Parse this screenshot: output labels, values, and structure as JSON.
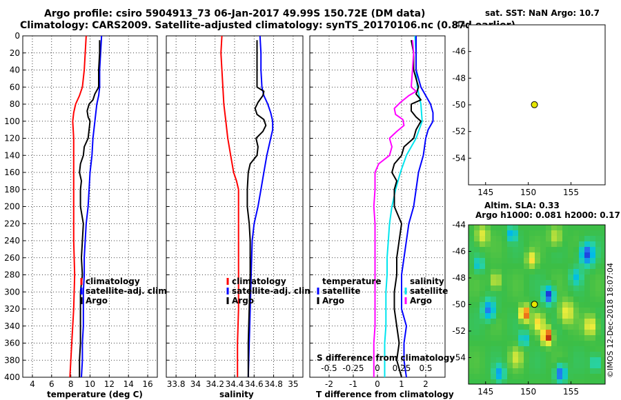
{
  "title_line1": "Argo profile: csiro 5904913_73 06-Jan-2017 49.99S 150.72E (DM data)",
  "title_line2": "Climatology: CARS2009. Satellite-adjusted climatology: synTS_20170106.nc (0.87d earlier)",
  "stamp": "©IMOS 12-Dec-2018 18:07:04",
  "colors": {
    "climatology": "#ff0000",
    "satellite": "#0000ff",
    "argo": "#000000",
    "sat_diff_s": "#00e5ee",
    "sat_diff_t": "#ff00ff",
    "marker": "#e6e600"
  },
  "chart_data": [
    {
      "id": "temperature",
      "type": "line",
      "xlabel": "temperature (deg C)",
      "xlim": [
        3,
        17
      ],
      "ylim": [
        400,
        0
      ],
      "xticks": [
        4,
        6,
        8,
        10,
        12,
        14,
        16
      ],
      "yticks": [
        0,
        20,
        40,
        60,
        80,
        100,
        120,
        140,
        160,
        180,
        200,
        220,
        240,
        260,
        280,
        300,
        320,
        340,
        360,
        380,
        400
      ],
      "legend": [
        "climatology",
        "satellite-adj. clim.",
        "Argo"
      ],
      "series": [
        {
          "name": "climatology",
          "color": "#ff0000",
          "depth": [
            0,
            20,
            40,
            60,
            70,
            80,
            90,
            100,
            120,
            160,
            200,
            240,
            280,
            320,
            360,
            400
          ],
          "values": [
            9.6,
            9.5,
            9.4,
            9.2,
            8.9,
            8.5,
            8.3,
            8.2,
            8.3,
            8.3,
            8.3,
            8.3,
            8.4,
            8.3,
            8.1,
            7.9
          ]
        },
        {
          "name": "satellite-adj. clim.",
          "color": "#0000ff",
          "depth": [
            0,
            20,
            40,
            60,
            70,
            80,
            90,
            100,
            110,
            120,
            140,
            160,
            180,
            200,
            220,
            240,
            260,
            280,
            300,
            320,
            340,
            360,
            380,
            400
          ],
          "values": [
            11.2,
            11.1,
            11.0,
            11.0,
            10.9,
            10.7,
            10.6,
            10.5,
            10.4,
            10.3,
            10.2,
            10.0,
            9.9,
            9.8,
            9.6,
            9.5,
            9.4,
            9.4,
            9.3,
            9.3,
            9.3,
            9.2,
            9.2,
            9.1
          ]
        },
        {
          "name": "Argo",
          "color": "#000000",
          "depth": [
            5,
            20,
            40,
            60,
            68,
            75,
            80,
            88,
            95,
            100,
            110,
            120,
            130,
            140,
            150,
            160,
            170,
            180,
            200,
            220,
            240,
            260,
            280,
            300,
            320,
            340,
            360,
            380,
            400
          ],
          "values": [
            11.0,
            11.0,
            10.9,
            10.9,
            10.5,
            10.3,
            9.9,
            9.7,
            9.8,
            10.0,
            9.9,
            9.8,
            9.4,
            9.3,
            9.0,
            8.9,
            9.1,
            9.0,
            9.0,
            9.3,
            9.2,
            9.1,
            9.2,
            9.0,
            9.0,
            9.0,
            9.0,
            8.9,
            8.9
          ]
        }
      ]
    },
    {
      "id": "salinity",
      "type": "line",
      "xlabel": "salinity",
      "xlim": [
        33.7,
        35.1
      ],
      "ylim": [
        400,
        0
      ],
      "xticks": [
        33.8,
        34,
        34.2,
        34.4,
        34.6,
        34.8,
        35
      ],
      "xticklabels": [
        "33.8",
        "34",
        "34.2",
        "34.4",
        "34.6",
        "34.8",
        "35"
      ],
      "legend": [
        "climatology",
        "satellite-adj. clim.",
        "Argo"
      ],
      "series": [
        {
          "name": "climatology",
          "color": "#ff0000",
          "depth": [
            0,
            20,
            40,
            60,
            80,
            100,
            120,
            140,
            160,
            170,
            180,
            200,
            240,
            280,
            320,
            360,
            400
          ],
          "values": [
            34.27,
            34.26,
            34.27,
            34.28,
            34.29,
            34.31,
            34.33,
            34.36,
            34.39,
            34.42,
            34.44,
            34.44,
            34.44,
            34.44,
            34.44,
            34.43,
            34.43
          ]
        },
        {
          "name": "satellite-adj. clim.",
          "color": "#0000ff",
          "depth": [
            0,
            20,
            40,
            60,
            70,
            80,
            90,
            100,
            110,
            120,
            140,
            160,
            180,
            200,
            220,
            240,
            280,
            320,
            360,
            400
          ],
          "values": [
            34.66,
            34.67,
            34.67,
            34.68,
            34.7,
            34.74,
            34.77,
            34.79,
            34.79,
            34.77,
            34.73,
            34.7,
            34.67,
            34.64,
            34.6,
            34.58,
            34.57,
            34.56,
            34.55,
            34.54
          ]
        },
        {
          "name": "Argo",
          "color": "#000000",
          "depth": [
            5,
            20,
            40,
            60,
            65,
            70,
            78,
            85,
            92,
            98,
            105,
            112,
            120,
            130,
            140,
            150,
            160,
            180,
            200,
            220,
            240,
            280,
            320,
            360,
            400
          ],
          "values": [
            34.63,
            34.63,
            34.63,
            34.63,
            34.7,
            34.69,
            34.64,
            34.61,
            34.63,
            34.7,
            34.72,
            34.69,
            34.62,
            34.64,
            34.63,
            34.56,
            34.54,
            34.53,
            34.53,
            34.55,
            34.56,
            34.56,
            34.55,
            34.54,
            34.54
          ]
        }
      ]
    },
    {
      "id": "difference",
      "type": "line",
      "xlabel": "T difference from climatology",
      "xlabel_top": "S difference from climatology",
      "xlim": [
        -2.8,
        2.8
      ],
      "ylim": [
        400,
        0
      ],
      "xticks": [
        -2,
        -1,
        0,
        1,
        2
      ],
      "xticks_top": [
        -0.5,
        -0.25,
        0,
        0.25,
        0.5
      ],
      "xticklabels_top": [
        "-0.5",
        "-0.25",
        "0",
        "0.25",
        "0.5"
      ],
      "legend_left_title": "temperature",
      "legend_right_title": "salinity",
      "legend_left": [
        "satellite",
        "Argo"
      ],
      "legend_right": [
        "satellite",
        "Argo"
      ],
      "series": [
        {
          "name": "S satellite",
          "color": "#00e5ee",
          "depth": [
            0,
            20,
            40,
            60,
            80,
            100,
            120,
            140,
            160,
            180,
            200,
            220,
            240,
            260,
            280,
            300,
            320,
            340,
            360,
            380,
            400
          ],
          "values": [
            1.55,
            1.6,
            1.6,
            1.65,
            1.8,
            1.85,
            1.6,
            1.2,
            0.95,
            0.75,
            0.6,
            0.5,
            0.45,
            0.4,
            0.4,
            0.35,
            0.35,
            0.35,
            0.3,
            0.3,
            0.3
          ]
        },
        {
          "name": "T satellite",
          "color": "#0000ff",
          "depth": [
            0,
            20,
            40,
            60,
            70,
            80,
            90,
            100,
            110,
            120,
            140,
            160,
            180,
            200,
            220,
            240,
            260,
            280,
            300,
            320,
            340,
            360,
            380,
            400
          ],
          "values": [
            1.6,
            1.6,
            1.6,
            1.8,
            2.0,
            2.2,
            2.3,
            2.3,
            2.1,
            2.0,
            1.9,
            1.7,
            1.6,
            1.5,
            1.3,
            1.2,
            1.1,
            1.0,
            1.0,
            1.0,
            1.2,
            1.1,
            1.1,
            1.2
          ]
        },
        {
          "name": "T Argo",
          "color": "#000000",
          "depth": [
            5,
            20,
            40,
            60,
            68,
            75,
            80,
            88,
            95,
            100,
            110,
            120,
            130,
            140,
            150,
            160,
            170,
            180,
            200,
            220,
            240,
            260,
            280,
            300,
            320,
            340,
            360,
            380,
            400
          ],
          "values": [
            1.4,
            1.5,
            1.5,
            1.7,
            1.6,
            1.8,
            1.4,
            1.4,
            1.6,
            1.8,
            1.6,
            1.5,
            1.1,
            1.0,
            0.7,
            0.6,
            0.8,
            0.7,
            0.7,
            1.0,
            0.9,
            0.8,
            0.8,
            0.7,
            0.7,
            0.8,
            0.9,
            0.8,
            1.0
          ]
        },
        {
          "name": "S Argo",
          "color": "#ff00ff",
          "depth": [
            5,
            20,
            40,
            60,
            65,
            70,
            78,
            85,
            92,
            98,
            105,
            112,
            120,
            130,
            140,
            150,
            160,
            180,
            200,
            220,
            240,
            260,
            280,
            300,
            320,
            340,
            360,
            380,
            400
          ],
          "values": [
            1.45,
            1.5,
            1.45,
            1.4,
            1.6,
            1.3,
            0.95,
            0.7,
            0.75,
            1.05,
            1.1,
            0.8,
            0.5,
            0.6,
            0.5,
            0.05,
            -0.1,
            -0.1,
            -0.15,
            -0.1,
            -0.1,
            -0.1,
            -0.1,
            -0.1,
            -0.1,
            -0.1,
            -0.15,
            -0.15,
            -0.15
          ]
        }
      ]
    },
    {
      "id": "sst-map",
      "type": "scatter",
      "title": "sat. SST: NaN Argo: 10.7",
      "xlim": [
        143,
        159
      ],
      "ylim": [
        -56,
        -44
      ],
      "xticks": [
        145,
        150,
        155
      ],
      "yticks": [
        -44,
        -46,
        -48,
        -50,
        -52,
        -54
      ],
      "points": [
        {
          "x": 150.72,
          "y": -49.99
        }
      ]
    },
    {
      "id": "sla-map",
      "type": "heatmap",
      "title_line1": "Altim. SLA: 0.33",
      "title_line2": "Argo h1000: 0.081 h2000: 0.17",
      "xlim": [
        143,
        159
      ],
      "ylim": [
        -56,
        -44
      ],
      "xticks": [
        145,
        150,
        155
      ],
      "yticks": [
        -44,
        -46,
        -48,
        -50,
        -52,
        -54
      ],
      "points": [
        {
          "x": 150.72,
          "y": -49.99
        }
      ]
    }
  ]
}
